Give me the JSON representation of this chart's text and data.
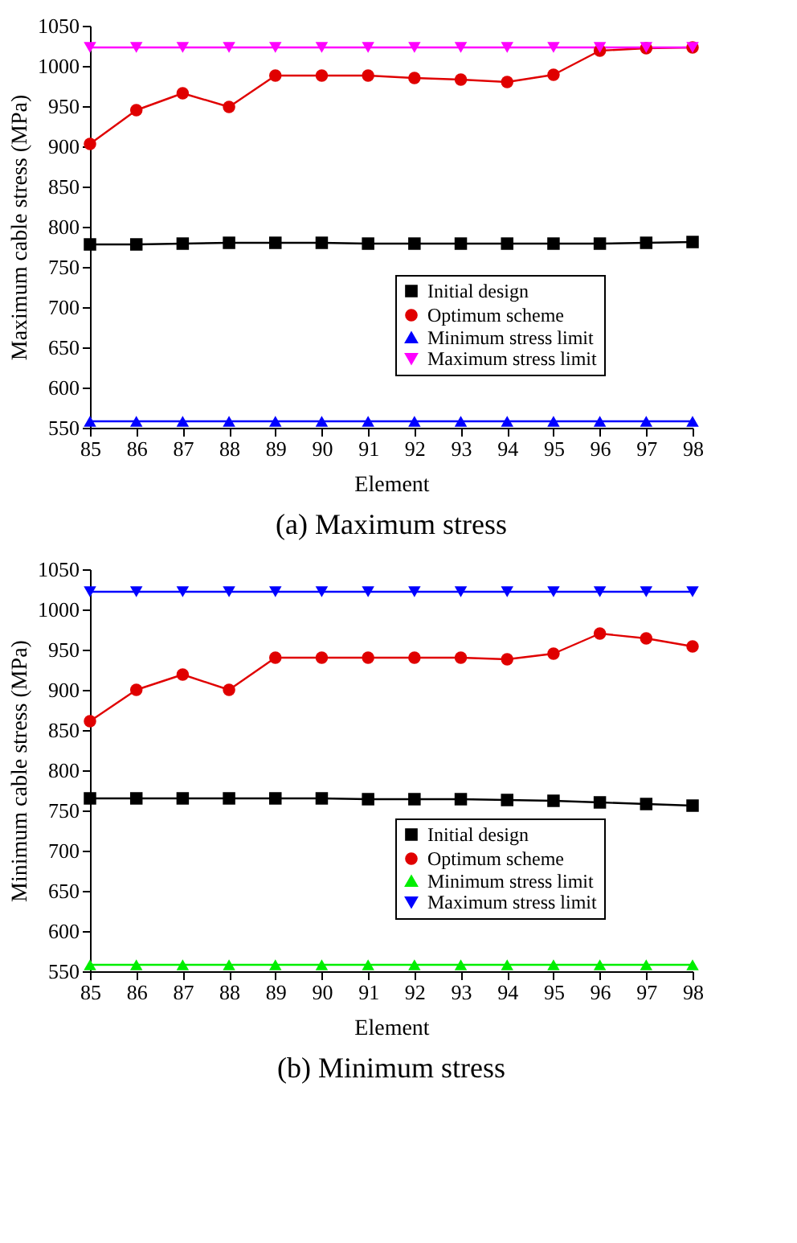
{
  "chart_data": [
    {
      "type": "line",
      "title": "(a) Maximum stress",
      "xlabel": "Element",
      "ylabel": "Maximum cable stress (MPa)",
      "x": [
        85,
        86,
        87,
        88,
        89,
        90,
        91,
        92,
        93,
        94,
        95,
        96,
        97,
        98
      ],
      "xlim": [
        85,
        98
      ],
      "xticks": [
        85,
        86,
        87,
        88,
        89,
        90,
        91,
        92,
        93,
        94,
        95,
        96,
        97,
        98
      ],
      "ylim": [
        550,
        1050
      ],
      "yticks": [
        550,
        600,
        650,
        700,
        750,
        800,
        850,
        900,
        950,
        1000,
        1050
      ],
      "grid": false,
      "legend": "right",
      "series": [
        {
          "name": "Initial design",
          "color": "#000000",
          "marker": "square",
          "values": [
            778,
            778,
            779,
            780,
            780,
            780,
            779,
            779,
            779,
            779,
            779,
            779,
            780,
            781
          ]
        },
        {
          "name": "Optimum scheme",
          "color": "#e00000",
          "marker": "circle",
          "values": [
            903,
            945,
            966,
            949,
            988,
            988,
            988,
            985,
            983,
            980,
            989,
            1019,
            1022,
            1023
          ]
        },
        {
          "name": "Minimum stress limit",
          "color": "#0000ff",
          "marker": "triangle",
          "values": [
            558,
            558,
            558,
            558,
            558,
            558,
            558,
            558,
            558,
            558,
            558,
            558,
            558,
            558
          ]
        },
        {
          "name": "Maximum stress limit",
          "color": "#ff00ff",
          "marker": "triangle-down",
          "values": [
            1023,
            1023,
            1023,
            1023,
            1023,
            1023,
            1023,
            1023,
            1023,
            1023,
            1023,
            1023,
            1023,
            1023
          ]
        }
      ]
    },
    {
      "type": "line",
      "title": "(b) Minimum stress",
      "xlabel": "Element",
      "ylabel": "Minimum cable stress (MPa)",
      "x": [
        85,
        86,
        87,
        88,
        89,
        90,
        91,
        92,
        93,
        94,
        95,
        96,
        97,
        98
      ],
      "xlim": [
        85,
        98
      ],
      "xticks": [
        85,
        86,
        87,
        88,
        89,
        90,
        91,
        92,
        93,
        94,
        95,
        96,
        97,
        98
      ],
      "ylim": [
        550,
        1050
      ],
      "yticks": [
        550,
        600,
        650,
        700,
        750,
        800,
        850,
        900,
        950,
        1000,
        1050
      ],
      "grid": false,
      "legend": "right",
      "series": [
        {
          "name": "Initial design",
          "color": "#000000",
          "marker": "square",
          "values": [
            765,
            765,
            765,
            765,
            765,
            765,
            764,
            764,
            764,
            763,
            762,
            760,
            758,
            756
          ]
        },
        {
          "name": "Optimum scheme",
          "color": "#e00000",
          "marker": "circle",
          "values": [
            861,
            900,
            919,
            900,
            940,
            940,
            940,
            940,
            940,
            938,
            945,
            970,
            964,
            954
          ]
        },
        {
          "name": "Minimum stress limit",
          "color": "#00ee00",
          "marker": "triangle",
          "values": [
            558,
            558,
            558,
            558,
            558,
            558,
            558,
            558,
            558,
            558,
            558,
            558,
            558,
            558
          ]
        },
        {
          "name": "Maximum stress limit",
          "color": "#0000ff",
          "marker": "triangle-down",
          "values": [
            1022,
            1022,
            1022,
            1022,
            1022,
            1022,
            1022,
            1022,
            1022,
            1022,
            1022,
            1022,
            1022,
            1022
          ]
        }
      ]
    }
  ]
}
